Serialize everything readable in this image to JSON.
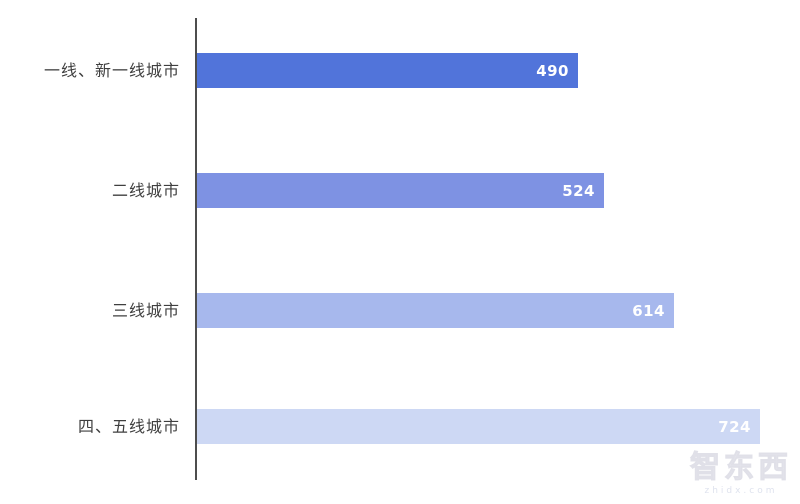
{
  "chart_data": {
    "type": "bar",
    "orientation": "horizontal",
    "title": "",
    "xlabel": "",
    "ylabel": "",
    "categories": [
      "一线、新一线城市",
      "二线城市",
      "三线城市",
      "四、五线城市"
    ],
    "values": [
      490,
      524,
      614,
      724
    ],
    "bar_colors": [
      "#5174DA",
      "#7E92E3",
      "#A7B8ED",
      "#CDD8F4"
    ],
    "value_label_color": "#ffffff",
    "axis_color": "#4d4d4d",
    "xlim": [
      0,
      778
    ],
    "grid": false,
    "legend": "none",
    "value_labels_shown": true
  },
  "watermark": {
    "logo_text": "智东西",
    "site_text": "zhidx.com"
  }
}
